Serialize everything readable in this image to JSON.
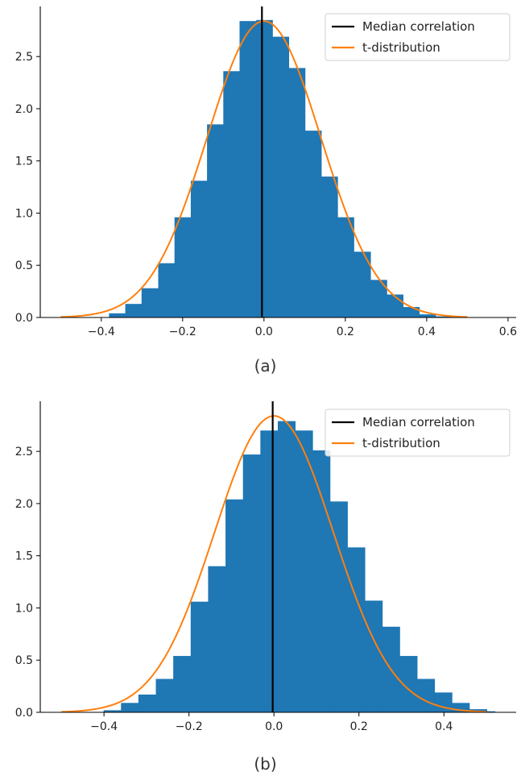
{
  "colors": {
    "bar": "#1f77b4",
    "median": "#000000",
    "tdist": "#ff7f0e",
    "axis": "#000000"
  },
  "chart_data": [
    {
      "type": "bar",
      "caption": "(a)",
      "legend": [
        {
          "label": "Median correlation",
          "color": "#000000"
        },
        {
          "label": "t-distribution",
          "color": "#ff7f0e"
        }
      ],
      "legend_position": "top-right",
      "grid": false,
      "xlim": [
        -0.55,
        0.62
      ],
      "ylim": [
        0,
        2.98
      ],
      "xticks": [
        -0.4,
        -0.2,
        0.0,
        0.2,
        0.4,
        0.6
      ],
      "xtick_labels": [
        "−0.4",
        "−0.2",
        "0.0",
        "0.2",
        "0.4",
        "0.6"
      ],
      "yticks": [
        0.0,
        0.5,
        1.0,
        1.5,
        2.0,
        2.5
      ],
      "ytick_labels": [
        "0.0",
        "0.5",
        "1.0",
        "1.5",
        "2.0",
        "2.5"
      ],
      "median": -0.005,
      "t_dist": {
        "x_start": -0.5,
        "x_end": 0.5,
        "peak": 2.84,
        "sigma": 0.14
      },
      "histogram": {
        "bin_edges": [
          -0.381,
          -0.341,
          -0.301,
          -0.26,
          -0.22,
          -0.18,
          -0.14,
          -0.1,
          -0.06,
          -0.019,
          0.021,
          0.061,
          0.101,
          0.141,
          0.181,
          0.221,
          0.262,
          0.302,
          0.342,
          0.382,
          0.422,
          0.462
        ],
        "values": [
          0.04,
          0.13,
          0.28,
          0.52,
          0.96,
          1.31,
          1.85,
          2.36,
          2.84,
          2.85,
          2.69,
          2.39,
          1.79,
          1.35,
          0.96,
          0.63,
          0.36,
          0.22,
          0.1,
          0.03,
          0.01
        ]
      }
    },
    {
      "type": "bar",
      "caption": "(b)",
      "legend": [
        {
          "label": "Median correlation",
          "color": "#000000"
        },
        {
          "label": "t-distribution",
          "color": "#ff7f0e"
        }
      ],
      "legend_position": "top-right",
      "grid": false,
      "xlim": [
        -0.55,
        0.57
      ],
      "ylim": [
        0,
        2.98
      ],
      "xticks": [
        -0.4,
        -0.2,
        0.0,
        0.2,
        0.4
      ],
      "xtick_labels": [
        "−0.4",
        "−0.2",
        "0.0",
        "0.2",
        "0.4"
      ],
      "yticks": [
        0.0,
        0.5,
        1.0,
        1.5,
        2.0,
        2.5
      ],
      "ytick_labels": [
        "0.0",
        "0.5",
        "1.0",
        "1.5",
        "2.0",
        "2.5"
      ],
      "median": -0.003,
      "t_dist": {
        "x_start": -0.5,
        "x_end": 0.5,
        "peak": 2.84,
        "sigma": 0.14
      },
      "histogram": {
        "bin_edges": [
          -0.401,
          -0.36,
          -0.319,
          -0.278,
          -0.237,
          -0.196,
          -0.155,
          -0.114,
          -0.073,
          -0.032,
          0.009,
          0.05,
          0.091,
          0.132,
          0.173,
          0.214,
          0.255,
          0.296,
          0.337,
          0.378,
          0.419,
          0.46,
          0.501,
          0.52
        ],
        "values": [
          0.02,
          0.09,
          0.17,
          0.32,
          0.54,
          1.06,
          1.4,
          2.04,
          2.47,
          2.7,
          2.79,
          2.7,
          2.51,
          2.02,
          1.58,
          1.07,
          0.82,
          0.54,
          0.32,
          0.19,
          0.09,
          0.03,
          0.01
        ]
      }
    }
  ]
}
